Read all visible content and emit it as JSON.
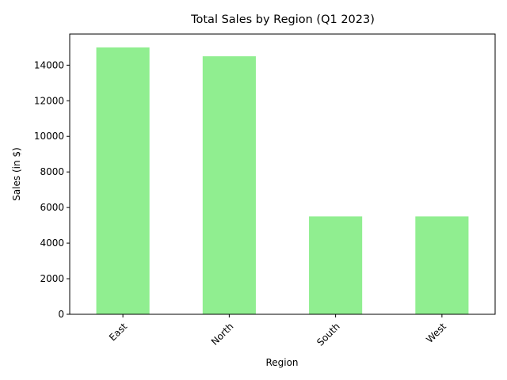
{
  "chart_data": {
    "type": "bar",
    "title": "Total Sales by Region (Q1 2023)",
    "xlabel": "Region",
    "ylabel": "Sales (in $)",
    "categories": [
      "East",
      "North",
      "South",
      "West"
    ],
    "values": [
      15000,
      14500,
      5500,
      5500
    ],
    "ylim": [
      0,
      15750
    ],
    "yticks": [
      0,
      2000,
      4000,
      6000,
      8000,
      10000,
      12000,
      14000
    ],
    "x_tick_rotation_deg": 45,
    "grid": false,
    "legend": "none",
    "bar_color": "#90ee90"
  }
}
